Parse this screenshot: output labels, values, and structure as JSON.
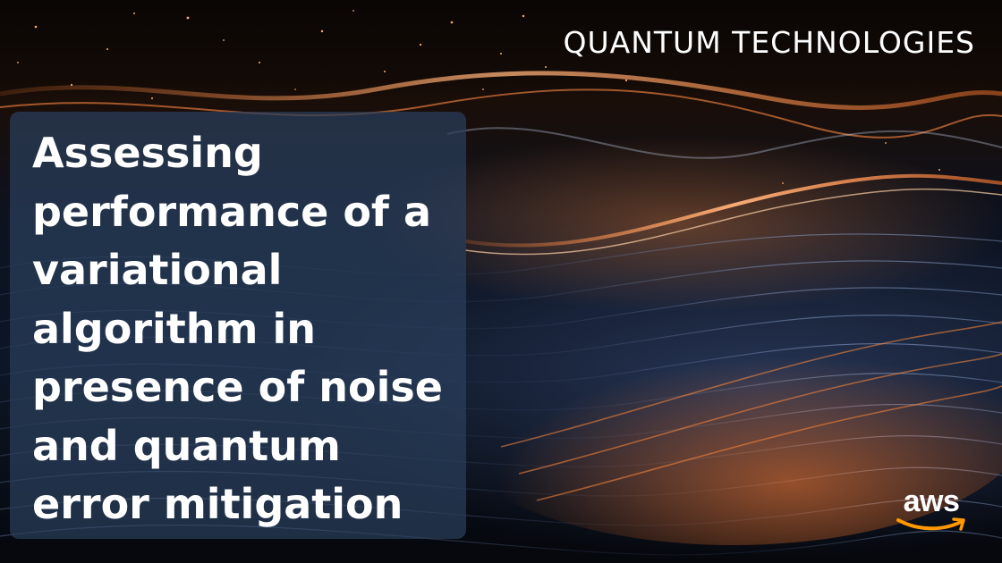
{
  "banner": {
    "category": "QUANTUM TECHNOLOGIES",
    "title": "Assessing performance of a variational algorithm in presence of noise and quantum error mitigation",
    "logo": {
      "text": "aws",
      "icon": "aws-smile-arrow-icon",
      "color": "#ffffff",
      "arrow_color": "#ff9900"
    },
    "background": {
      "description_icon": "quantum-wave-mesh-image",
      "accent": "#ff8c3c",
      "panel_color": "#2a3e5c"
    }
  }
}
